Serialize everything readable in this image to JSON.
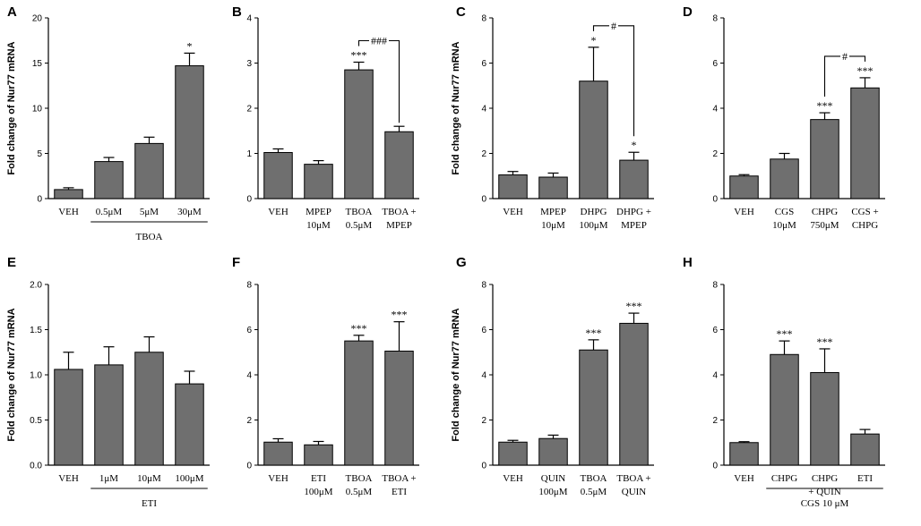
{
  "chart_data": [
    {
      "panel": "A",
      "type": "bar",
      "ylabel": "Fold change of Nur77 mRNA",
      "ylim": [
        0,
        20
      ],
      "yticks": [
        0,
        5,
        10,
        15,
        20
      ],
      "categories": [
        [
          "VEH"
        ],
        [
          "0.5μM"
        ],
        [
          "5μM"
        ],
        [
          "30μM"
        ]
      ],
      "values": [
        1.0,
        4.1,
        6.1,
        14.7
      ],
      "errors": [
        0.2,
        0.45,
        0.7,
        1.4
      ],
      "significance": [
        "",
        "",
        "",
        "*"
      ],
      "brackets": [],
      "group_label": {
        "text": "TBOA",
        "from": 1,
        "to": 3
      }
    },
    {
      "panel": "B",
      "type": "bar",
      "ylabel": "",
      "ylim": [
        0,
        4
      ],
      "yticks": [
        0,
        1,
        2,
        3,
        4
      ],
      "categories": [
        [
          "VEH"
        ],
        [
          "MPEP",
          "10μM"
        ],
        [
          "TBOA",
          "0.5μM"
        ],
        [
          "TBOA +",
          "MPEP"
        ]
      ],
      "values": [
        1.02,
        0.76,
        2.85,
        1.48
      ],
      "errors": [
        0.08,
        0.08,
        0.17,
        0.12
      ],
      "significance": [
        "",
        "",
        "***",
        ""
      ],
      "brackets": [
        {
          "from": 2,
          "to": 3,
          "label": "###"
        }
      ]
    },
    {
      "panel": "C",
      "type": "bar",
      "ylabel": "Fold change of Nur77 mRNA",
      "ylim": [
        0,
        8
      ],
      "yticks": [
        0,
        2,
        4,
        6,
        8
      ],
      "categories": [
        [
          "VEH"
        ],
        [
          "MPEP",
          "10μM"
        ],
        [
          "DHPG",
          "100μM"
        ],
        [
          "DHPG +",
          "MPEP"
        ]
      ],
      "values": [
        1.05,
        0.95,
        5.2,
        1.7
      ],
      "errors": [
        0.15,
        0.18,
        1.5,
        0.35
      ],
      "significance": [
        "",
        "",
        "*",
        "*"
      ],
      "brackets": [
        {
          "from": 2,
          "to": 3,
          "label": "#"
        }
      ]
    },
    {
      "panel": "D",
      "type": "bar",
      "ylabel": "",
      "ylim": [
        0,
        8
      ],
      "yticks": [
        0,
        2,
        4,
        6,
        8
      ],
      "categories": [
        [
          "VEH"
        ],
        [
          "CGS",
          "10μM"
        ],
        [
          "CHPG",
          "750μM"
        ],
        [
          "CGS +",
          "CHPG"
        ]
      ],
      "values": [
        1.0,
        1.75,
        3.5,
        4.9
      ],
      "errors": [
        0.06,
        0.25,
        0.3,
        0.45
      ],
      "significance": [
        "",
        "",
        "***",
        "***"
      ],
      "brackets": [
        {
          "from": 2,
          "to": 3,
          "label": "#"
        }
      ]
    },
    {
      "panel": "E",
      "type": "bar",
      "ylabel": "Fold change of Nur77 mRNA",
      "ylim": [
        0,
        2.0
      ],
      "yticks": [
        "0.0",
        "0.5",
        "1.0",
        "1.5",
        "2.0"
      ],
      "categories": [
        [
          "VEH"
        ],
        [
          "1μM"
        ],
        [
          "10μM"
        ],
        [
          "100μM"
        ]
      ],
      "values": [
        1.06,
        1.11,
        1.25,
        0.9
      ],
      "errors": [
        0.19,
        0.2,
        0.17,
        0.14
      ],
      "significance": [
        "",
        "",
        "",
        ""
      ],
      "brackets": [],
      "group_label": {
        "text": "ETI",
        "from": 1,
        "to": 3
      }
    },
    {
      "panel": "F",
      "type": "bar",
      "ylabel": "",
      "ylim": [
        0,
        8
      ],
      "yticks": [
        0,
        2,
        4,
        6,
        8
      ],
      "categories": [
        [
          "VEH"
        ],
        [
          "ETI",
          "100μM"
        ],
        [
          "TBOA",
          "0.5μM"
        ],
        [
          "TBOA +",
          "ETI"
        ]
      ],
      "values": [
        1.02,
        0.9,
        5.5,
        5.05
      ],
      "errors": [
        0.15,
        0.15,
        0.25,
        1.3
      ],
      "significance": [
        "",
        "",
        "***",
        "***"
      ],
      "brackets": []
    },
    {
      "panel": "G",
      "type": "bar",
      "ylabel": "Fold change of Nur77 mRNA",
      "ylim": [
        0,
        8
      ],
      "yticks": [
        0,
        2,
        4,
        6,
        8
      ],
      "categories": [
        [
          "VEH"
        ],
        [
          "QUIN",
          "100μM"
        ],
        [
          "TBOA",
          "0.5μM"
        ],
        [
          "TBOA +",
          "QUIN"
        ]
      ],
      "values": [
        1.02,
        1.18,
        5.1,
        6.28
      ],
      "errors": [
        0.08,
        0.15,
        0.45,
        0.45
      ],
      "significance": [
        "",
        "",
        "***",
        "***"
      ],
      "brackets": []
    },
    {
      "panel": "H",
      "type": "bar",
      "ylabel": "",
      "ylim": [
        0,
        8
      ],
      "yticks": [
        0,
        2,
        4,
        6,
        8
      ],
      "categories": [
        [
          "VEH"
        ],
        [
          "CHPG"
        ],
        [
          "CHPG",
          "+ QUIN"
        ],
        [
          "ETI"
        ]
      ],
      "values": [
        1.0,
        4.9,
        4.1,
        1.38
      ],
      "errors": [
        0.04,
        0.6,
        1.05,
        0.2
      ],
      "significance": [
        "",
        "***",
        "***",
        ""
      ],
      "brackets": [],
      "group_label": {
        "text": "CGS 10 μM",
        "from": 1,
        "to": 3
      }
    }
  ]
}
